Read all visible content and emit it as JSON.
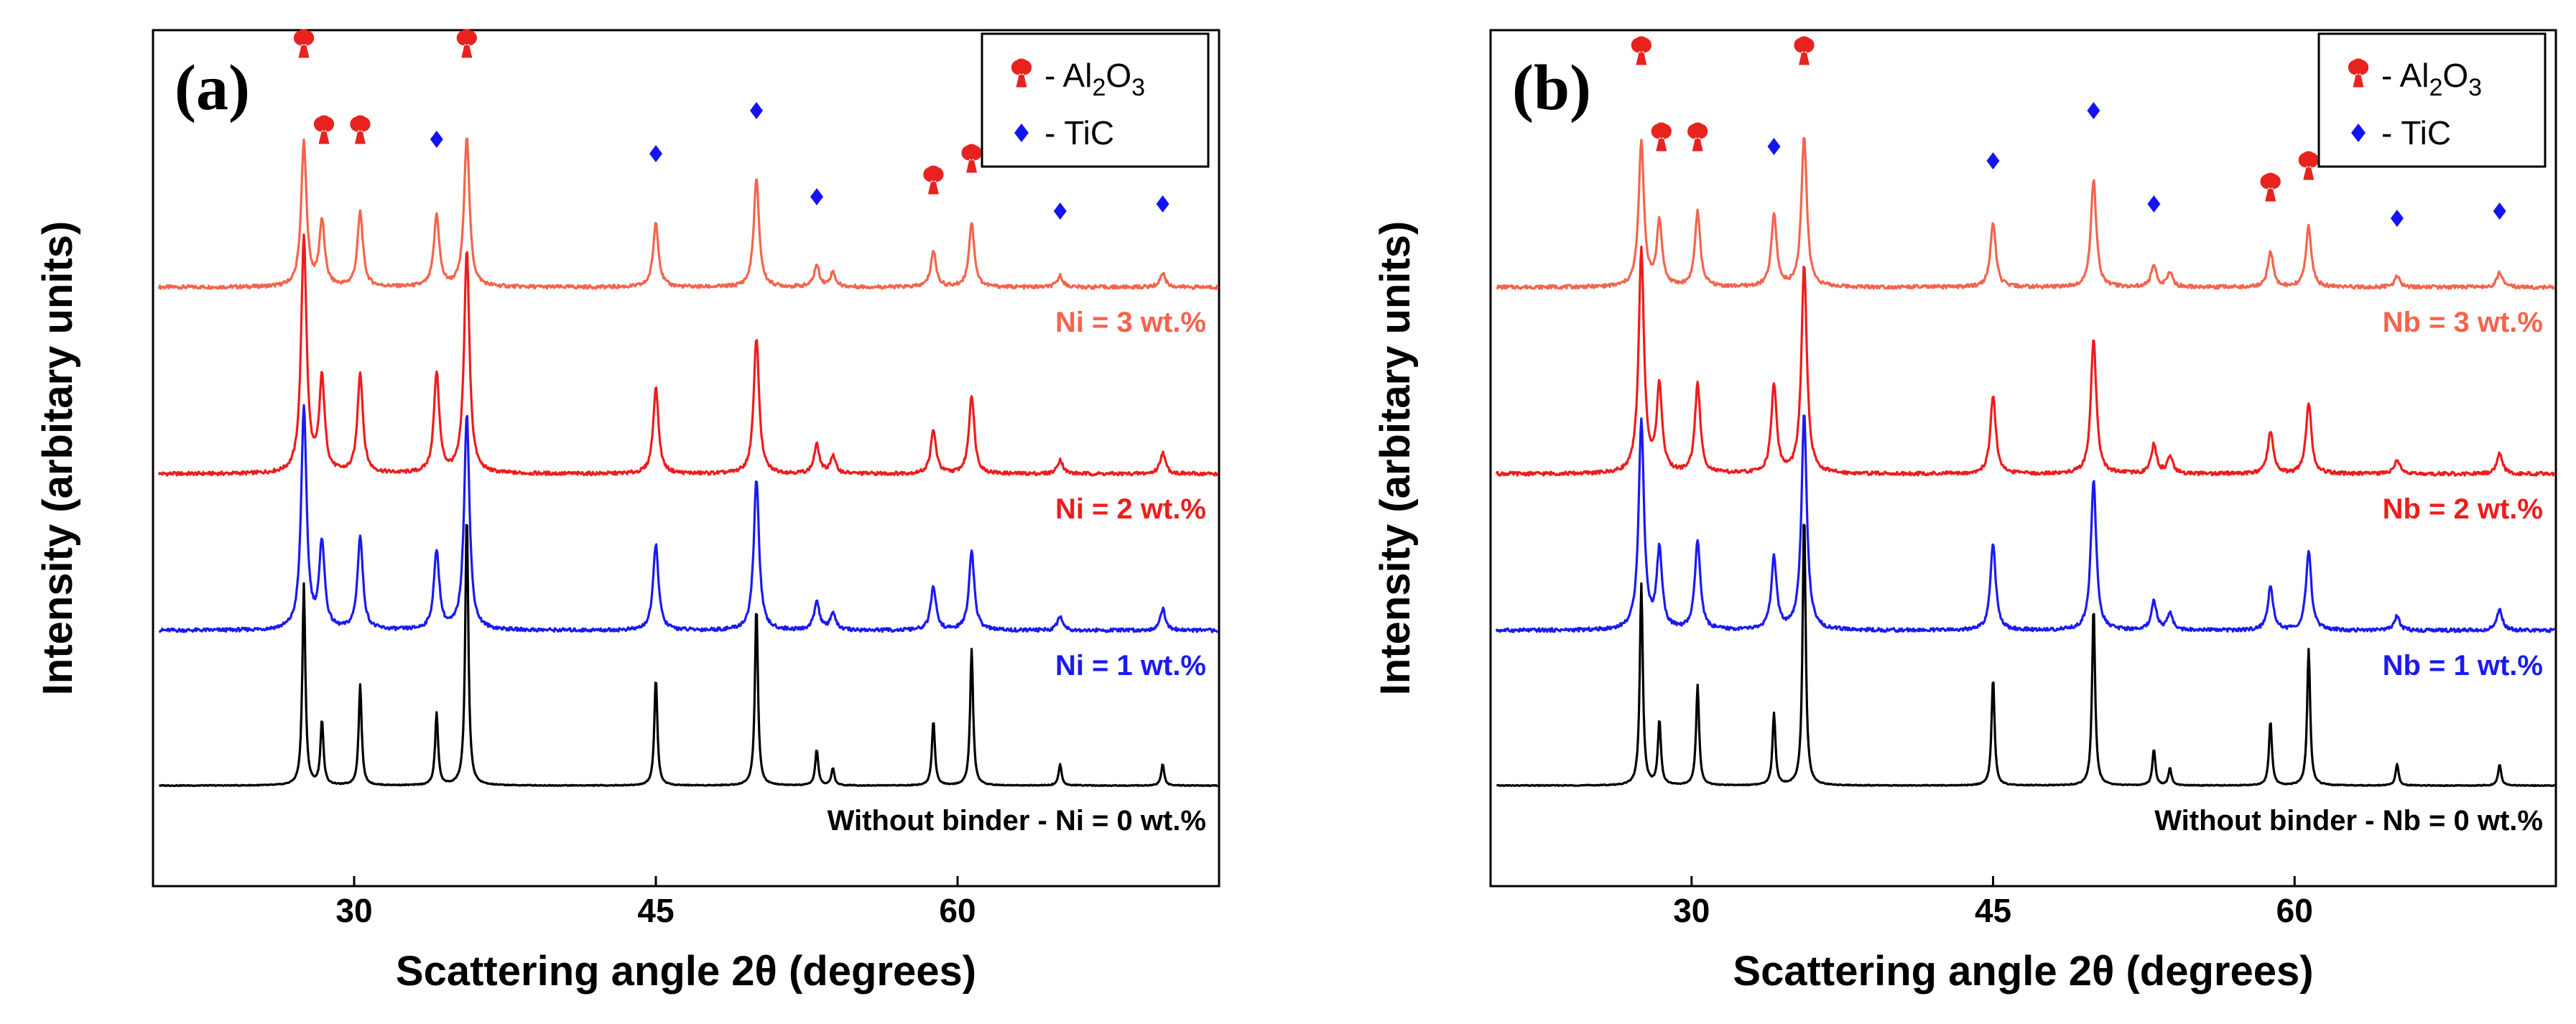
{
  "chart_data": [
    {
      "type": "line",
      "panel_label": "(a)",
      "xlabel": "Scattering angle 2θ (degrees)",
      "ylabel": "Intensity (arbitary units)",
      "xlim": [
        20,
        73
      ],
      "xticks": [
        30,
        45,
        60
      ],
      "yticks_shown": false,
      "legend": {
        "position": "top-right",
        "entries": [
          {
            "symbol": "club",
            "color": "#e8231f",
            "label_prefix": "- Al",
            "sub1": "2",
            "mid": "O",
            "sub2": "3"
          },
          {
            "symbol": "diamond",
            "color": "#1414f0",
            "label_prefix": "- TiC",
            "sub1": "",
            "mid": "",
            "sub2": ""
          }
        ]
      },
      "series": [
        {
          "name": "Ni = 3 wt.%",
          "color": "#f4644c",
          "offset": 3,
          "peaks": [
            [
              27.5,
              1.0
            ],
            [
              28.4,
              0.45
            ],
            [
              30.3,
              0.52
            ],
            [
              34.1,
              0.5
            ],
            [
              35.6,
              1.05
            ],
            [
              45.0,
              0.45
            ],
            [
              50.0,
              0.75
            ],
            [
              53.0,
              0.15
            ],
            [
              53.8,
              0.1
            ],
            [
              58.8,
              0.25
            ],
            [
              60.7,
              0.45
            ],
            [
              65.1,
              0.08
            ],
            [
              70.2,
              0.1
            ]
          ]
        },
        {
          "name": "Ni = 2 wt.%",
          "color": "#ee1c1c",
          "offset": 2,
          "peaks": [
            [
              27.5,
              1.65
            ],
            [
              28.4,
              0.65
            ],
            [
              30.3,
              0.7
            ],
            [
              34.1,
              0.7
            ],
            [
              35.6,
              1.55
            ],
            [
              45.0,
              0.6
            ],
            [
              50.0,
              0.95
            ],
            [
              53.0,
              0.2
            ],
            [
              53.8,
              0.12
            ],
            [
              58.8,
              0.3
            ],
            [
              60.7,
              0.55
            ],
            [
              65.1,
              0.1
            ],
            [
              70.2,
              0.15
            ]
          ]
        },
        {
          "name": "Ni = 1 wt.%",
          "color": "#1a1af2",
          "offset": 1,
          "peaks": [
            [
              27.5,
              1.55
            ],
            [
              28.4,
              0.6
            ],
            [
              30.3,
              0.65
            ],
            [
              34.1,
              0.55
            ],
            [
              35.6,
              1.5
            ],
            [
              45.0,
              0.6
            ],
            [
              50.0,
              1.05
            ],
            [
              53.0,
              0.2
            ],
            [
              53.8,
              0.12
            ],
            [
              58.8,
              0.3
            ],
            [
              60.7,
              0.55
            ],
            [
              65.1,
              0.1
            ],
            [
              70.2,
              0.15
            ]
          ]
        },
        {
          "name": "Without binder - Ni = 0 wt.%",
          "color": "#000000",
          "offset": 0,
          "peaks": [
            [
              27.5,
              1.4
            ],
            [
              28.4,
              0.45
            ],
            [
              30.3,
              0.7
            ],
            [
              34.1,
              0.5
            ],
            [
              35.6,
              1.9
            ],
            [
              45.0,
              0.75
            ],
            [
              50.0,
              1.25
            ],
            [
              53.0,
              0.25
            ],
            [
              53.8,
              0.12
            ],
            [
              58.8,
              0.45
            ],
            [
              60.7,
              0.95
            ],
            [
              65.1,
              0.15
            ],
            [
              70.2,
              0.15
            ]
          ]
        }
      ],
      "markers": [
        {
          "type": "club",
          "x": 27.5,
          "level": 1.55
        },
        {
          "type": "club",
          "x": 28.5,
          "level": 0.95
        },
        {
          "type": "club",
          "x": 30.3,
          "level": 0.95
        },
        {
          "type": "diamond",
          "x": 34.1,
          "level": 0.9
        },
        {
          "type": "club",
          "x": 35.6,
          "level": 1.55
        },
        {
          "type": "diamond",
          "x": 45.0,
          "level": 0.8
        },
        {
          "type": "diamond",
          "x": 50.0,
          "level": 1.1
        },
        {
          "type": "diamond",
          "x": 53.0,
          "level": 0.5
        },
        {
          "type": "club",
          "x": 58.8,
          "level": 0.6
        },
        {
          "type": "club",
          "x": 60.7,
          "level": 0.75
        },
        {
          "type": "diamond",
          "x": 65.1,
          "level": 0.4
        },
        {
          "type": "diamond",
          "x": 70.2,
          "level": 0.45
        }
      ]
    },
    {
      "type": "line",
      "panel_label": "(b)",
      "xlabel": "Scattering angle 2θ (degrees)",
      "ylabel": "Intensity (arbitary units)",
      "xlim": [
        20,
        73
      ],
      "xticks": [
        30,
        45,
        60
      ],
      "yticks_shown": false,
      "legend": {
        "position": "top-right",
        "entries": [
          {
            "symbol": "club",
            "color": "#e8231f",
            "label_prefix": "- Al",
            "sub1": "2",
            "mid": "O",
            "sub2": "3"
          },
          {
            "symbol": "diamond",
            "color": "#1414f0",
            "label_prefix": "- TiC",
            "sub1": "",
            "mid": "",
            "sub2": ""
          }
        ]
      },
      "series": [
        {
          "name": "Nb = 3 wt.%",
          "color": "#f4644c",
          "offset": 3,
          "peaks": [
            [
              27.5,
              1.0
            ],
            [
              28.4,
              0.45
            ],
            [
              30.3,
              0.52
            ],
            [
              34.1,
              0.5
            ],
            [
              35.6,
              1.05
            ],
            [
              45.0,
              0.45
            ],
            [
              50.0,
              0.75
            ],
            [
              53.0,
              0.15
            ],
            [
              53.8,
              0.1
            ],
            [
              58.8,
              0.25
            ],
            [
              60.7,
              0.42
            ],
            [
              65.1,
              0.08
            ],
            [
              70.2,
              0.1
            ]
          ]
        },
        {
          "name": "Nb = 2 wt.%",
          "color": "#ee1c1c",
          "offset": 2,
          "peaks": [
            [
              27.5,
              1.55
            ],
            [
              28.4,
              0.6
            ],
            [
              30.3,
              0.62
            ],
            [
              34.1,
              0.62
            ],
            [
              35.6,
              1.45
            ],
            [
              45.0,
              0.55
            ],
            [
              50.0,
              0.95
            ],
            [
              53.0,
              0.2
            ],
            [
              53.8,
              0.12
            ],
            [
              58.8,
              0.3
            ],
            [
              60.7,
              0.5
            ],
            [
              65.1,
              0.1
            ],
            [
              70.2,
              0.15
            ]
          ]
        },
        {
          "name": "Nb = 1 wt.%",
          "color": "#1a1af2",
          "offset": 1,
          "peaks": [
            [
              27.5,
              1.45
            ],
            [
              28.4,
              0.55
            ],
            [
              30.3,
              0.62
            ],
            [
              34.1,
              0.5
            ],
            [
              35.6,
              1.5
            ],
            [
              45.0,
              0.6
            ],
            [
              50.0,
              1.05
            ],
            [
              53.0,
              0.2
            ],
            [
              53.8,
              0.12
            ],
            [
              58.8,
              0.3
            ],
            [
              60.7,
              0.55
            ],
            [
              65.1,
              0.1
            ],
            [
              70.2,
              0.15
            ]
          ]
        },
        {
          "name": "Without binder - Nb = 0 wt.%",
          "color": "#000000",
          "offset": 0,
          "peaks": [
            [
              27.5,
              1.4
            ],
            [
              28.4,
              0.45
            ],
            [
              30.3,
              0.7
            ],
            [
              34.1,
              0.5
            ],
            [
              35.6,
              1.9
            ],
            [
              45.0,
              0.75
            ],
            [
              50.0,
              1.25
            ],
            [
              53.0,
              0.25
            ],
            [
              53.8,
              0.12
            ],
            [
              58.8,
              0.45
            ],
            [
              60.7,
              0.95
            ],
            [
              65.1,
              0.15
            ],
            [
              70.2,
              0.15
            ]
          ]
        }
      ],
      "markers": [
        {
          "type": "club",
          "x": 27.5,
          "level": 1.5
        },
        {
          "type": "club",
          "x": 28.5,
          "level": 0.9
        },
        {
          "type": "club",
          "x": 30.3,
          "level": 0.9
        },
        {
          "type": "diamond",
          "x": 34.1,
          "level": 0.85
        },
        {
          "type": "club",
          "x": 35.6,
          "level": 1.5
        },
        {
          "type": "diamond",
          "x": 45.0,
          "level": 0.75
        },
        {
          "type": "diamond",
          "x": 50.0,
          "level": 1.1
        },
        {
          "type": "diamond",
          "x": 53.0,
          "level": 0.45
        },
        {
          "type": "club",
          "x": 58.8,
          "level": 0.55
        },
        {
          "type": "club",
          "x": 60.7,
          "level": 0.7
        },
        {
          "type": "diamond",
          "x": 65.1,
          "level": 0.35
        },
        {
          "type": "diamond",
          "x": 70.2,
          "level": 0.4
        }
      ]
    }
  ]
}
